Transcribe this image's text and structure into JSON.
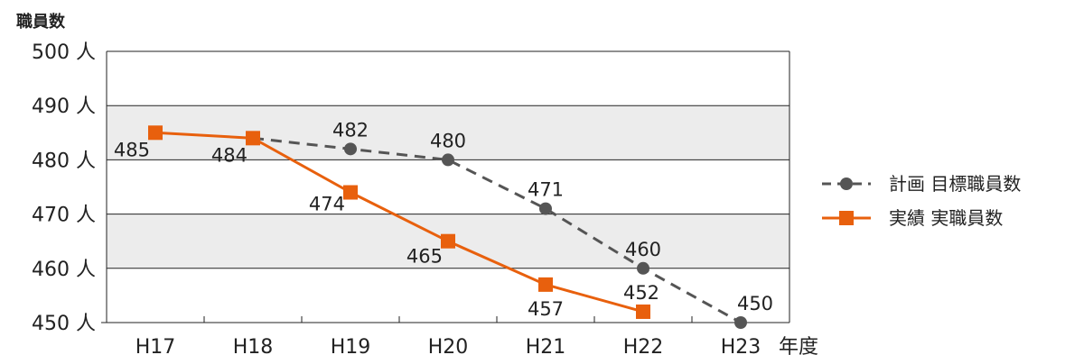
{
  "chart_data": {
    "type": "line",
    "ylabel": "職員数",
    "xlabel": "年度",
    "y_unit": "人",
    "ylim": [
      450,
      500
    ],
    "y_ticks": [
      500,
      490,
      480,
      470,
      460,
      450
    ],
    "categories": [
      "H17",
      "H18",
      "H19",
      "H20",
      "H21",
      "H22",
      "H23"
    ],
    "band_fill_color": "#ececec",
    "grid": true,
    "legend_position": "right",
    "series": [
      {
        "name": "計画 目標職員数",
        "color": "#555555",
        "line_style": "dashed",
        "marker": "circle",
        "values": [
          null,
          484,
          482,
          480,
          471,
          460,
          450
        ],
        "labels": [
          null,
          null,
          "482",
          "480",
          "471",
          "460",
          "450"
        ]
      },
      {
        "name": "実績 実職員数",
        "color": "#e8600d",
        "line_style": "solid",
        "marker": "square",
        "values": [
          485,
          484,
          474,
          465,
          457,
          452,
          null
        ],
        "labels": [
          "485",
          "484",
          "474",
          "465",
          "457",
          "452",
          null
        ]
      }
    ]
  }
}
